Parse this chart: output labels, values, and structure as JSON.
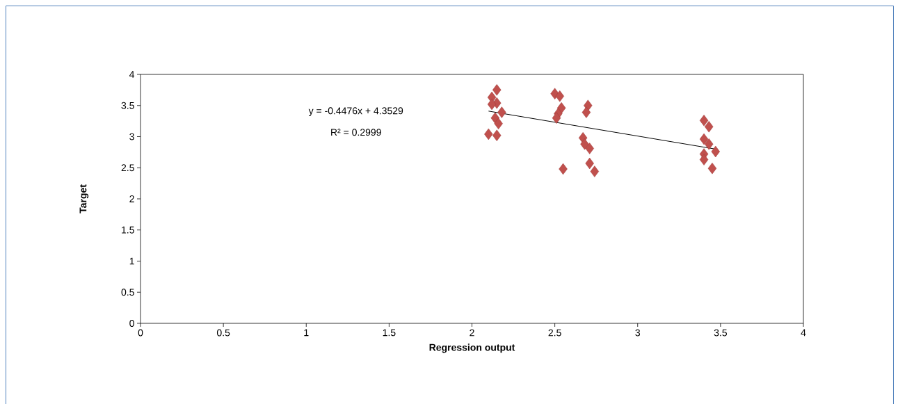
{
  "chart_data": {
    "type": "scatter",
    "xlabel": "Regression output",
    "ylabel": "Target",
    "xlim": [
      0,
      4
    ],
    "ylim": [
      0,
      4
    ],
    "xticks": [
      0,
      0.5,
      1,
      1.5,
      2,
      2.5,
      3,
      3.5,
      4
    ],
    "yticks": [
      0,
      0.5,
      1,
      1.5,
      2,
      2.5,
      3,
      3.5,
      4
    ],
    "grid": false,
    "marker": "diamond",
    "annotations": [
      "y = -0.4476x + 4.3529",
      "R² = 0.2999"
    ],
    "series": [
      {
        "color": "#c0504d",
        "x": [
          2.15,
          2.12,
          2.15,
          2.12,
          2.18,
          2.14,
          2.16,
          2.1,
          2.15,
          2.5,
          2.53,
          2.54,
          2.52,
          2.51,
          2.55,
          2.7,
          2.69,
          2.67,
          2.68,
          2.71,
          2.71,
          2.74,
          3.4,
          3.43,
          3.4,
          3.43,
          3.47,
          3.4,
          3.4,
          3.45
        ],
        "values": [
          3.75,
          3.63,
          3.54,
          3.52,
          3.39,
          3.3,
          3.21,
          3.04,
          3.02,
          3.69,
          3.65,
          3.46,
          3.37,
          3.3,
          2.48,
          3.5,
          3.39,
          2.98,
          2.88,
          2.81,
          2.57,
          2.44,
          3.26,
          3.16,
          2.96,
          2.88,
          2.76,
          2.72,
          2.63,
          2.49
        ]
      },
      {
        "type": "line",
        "color": "#000000",
        "marker": "none",
        "line_style": "solid",
        "x": [
          2.1,
          3.47
        ],
        "values": [
          3.41,
          2.8
        ]
      }
    ]
  }
}
